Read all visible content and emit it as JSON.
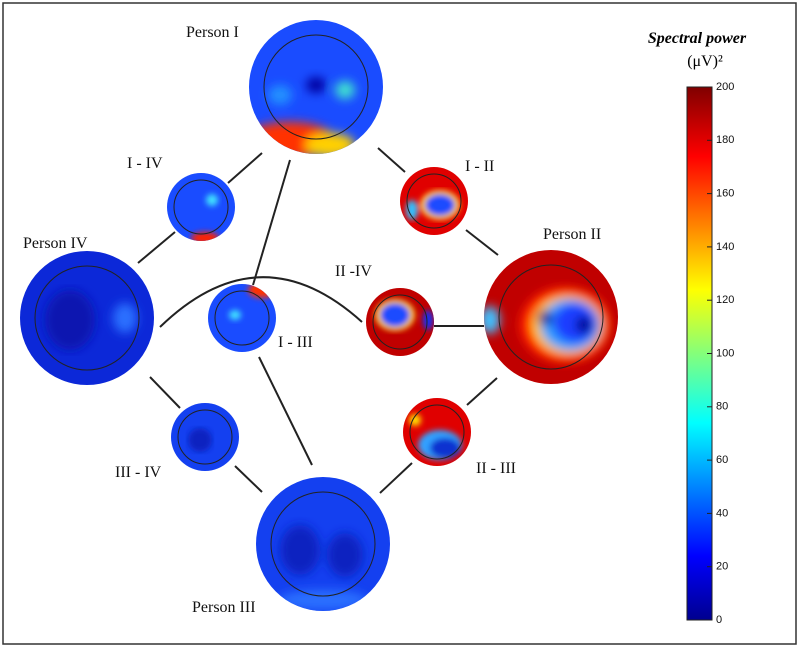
{
  "nodes": [
    {
      "label": "Person I"
    },
    {
      "label": "Person II"
    },
    {
      "label": "Person III"
    },
    {
      "label": "Person IV"
    },
    {
      "label": "I - IV"
    },
    {
      "label": "I - II"
    },
    {
      "label": "I - III"
    },
    {
      "label": "II -IV"
    },
    {
      "label": "II - III"
    },
    {
      "label": "III - IV"
    }
  ],
  "colorbar": {
    "title": "Spectral power",
    "unit": "(μV)²",
    "range": [
      0,
      200
    ],
    "ticks": [
      0,
      20,
      40,
      60,
      80,
      100,
      120,
      140,
      160,
      180,
      200
    ]
  }
}
